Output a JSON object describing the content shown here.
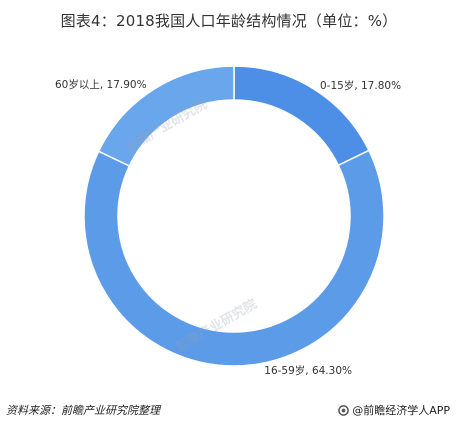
{
  "title": "图表4：2018我国人口年龄结构情况（单位：%）",
  "source": "资料来源：前瞻产业研究院整理",
  "brand": "@前瞻经济学人APP",
  "watermark": "前瞻产业研究院",
  "chart_data": {
    "type": "pie",
    "style": "donut",
    "title": "图表4：2018我国人口年龄结构情况（单位：%）",
    "unit": "%",
    "slices": [
      {
        "name": "0-15岁",
        "value": 17.8,
        "label": "0-15岁, 17.80%",
        "color": "#4d8fe6"
      },
      {
        "name": "16-59岁",
        "value": 64.3,
        "label": "16-59岁, 64.30%",
        "color": "#5b9be8"
      },
      {
        "name": "60岁以上",
        "value": 17.9,
        "label": "60岁以上, 17.90%",
        "color": "#6aa6ec"
      }
    ]
  }
}
